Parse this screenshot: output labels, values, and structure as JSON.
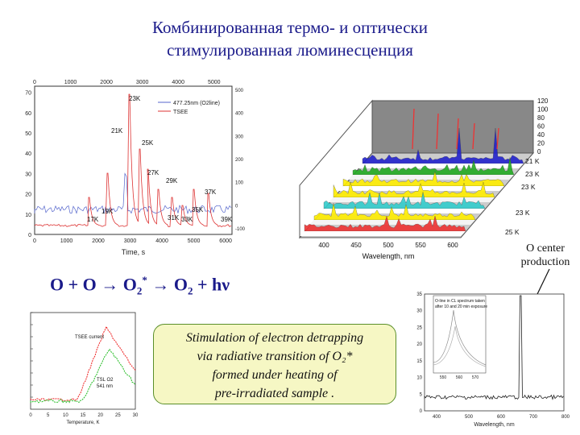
{
  "title": {
    "line1": "Комбинированная термо- и оптически",
    "line2": "стимулированная люминесценция"
  },
  "reaction": {
    "lhs": "O + O",
    "arrow1": "→",
    "mid": "O",
    "mid_sub": "2",
    "mid_sup": "*",
    "arrow2": "→",
    "rhs": "O",
    "rhs_sub": "2",
    "rhs_tail": " + hν"
  },
  "box": {
    "line1": "Stimulation of electron detrapping",
    "line2": "via radiative transition of O₂*",
    "line3": "formed under heating of",
    "line4": "pre-irradiated sample ."
  },
  "o_center_label": {
    "line1": "O center",
    "line2": "production"
  },
  "chart_data": [
    {
      "type": "line",
      "top_ticks": [
        "0",
        "1000",
        "2000",
        "3000",
        "4000",
        "5000"
      ],
      "left_ticks": [
        "0",
        "10",
        "20",
        "30",
        "40",
        "50",
        "60",
        "70"
      ],
      "right_ticks": [
        "-100",
        "0",
        "100",
        "200",
        "300",
        "400",
        "500"
      ],
      "bottom_ticks": [
        "0",
        "1000",
        "2000",
        "3000",
        "4000",
        "5000",
        "6000"
      ],
      "xlabel": "Time, s",
      "legend": [
        "477.25nm (O2line)",
        "TSEE"
      ],
      "temperature_labels": [
        "23K",
        "21K",
        "25K",
        "27K",
        "29K",
        "37K",
        "35K",
        "19K",
        "17K",
        "31K",
        "33K",
        "39K"
      ],
      "series_colors": {
        "line": "#5566cc",
        "tsee": "#dd3333"
      }
    },
    {
      "type": "area",
      "z_ticks": [
        "0",
        "20",
        "40",
        "60",
        "80",
        "100",
        "120"
      ],
      "slice_labels": [
        "21 K",
        "23 K",
        "23 K",
        "23 K",
        "25 K"
      ],
      "x_ticks": [
        "400",
        "450",
        "500",
        "550",
        "600"
      ],
      "xlabel": "Wavelength, nm",
      "slice_colors": [
        "#2222cc",
        "#22aa22",
        "#ffee00",
        "#ffee00",
        "#33cccc",
        "#ffee00",
        "#ee3333"
      ]
    },
    {
      "type": "line",
      "x_ticks": [
        "0",
        "5",
        "10",
        "15",
        "20",
        "25",
        "30"
      ],
      "xlabel": "Temperature, K",
      "label_tsee": "TSEE current",
      "label_o2": "TSL O2",
      "label_o2_nm": "541 nm",
      "series_colors": {
        "tsee": "#ee2222",
        "o2": "#22bb22"
      }
    },
    {
      "type": "line",
      "x_ticks": [
        "400",
        "500",
        "600",
        "700",
        "800"
      ],
      "y_ticks": [
        "0",
        "5",
        "10",
        "15",
        "20",
        "25",
        "30",
        "35"
      ],
      "xlabel": "Wavelength, nm",
      "inset_legend_1": "O-line in CL spectrum taken",
      "inset_legend_2": "after 10 and 20 min exposure",
      "inset_x_ticks": [
        "550",
        "560",
        "570"
      ]
    }
  ]
}
